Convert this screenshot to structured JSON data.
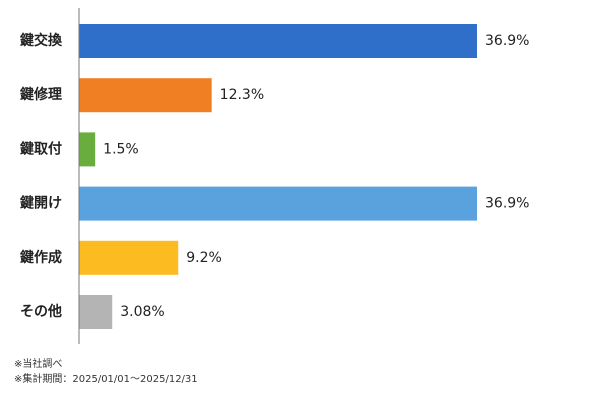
{
  "chart_data": {
    "type": "bar",
    "orientation": "horizontal",
    "categories": [
      "鍵交換",
      "鍵修理",
      "鍵取付",
      "鍵開け",
      "鍵作成",
      "その他"
    ],
    "values": [
      36.9,
      12.3,
      1.5,
      36.9,
      9.2,
      3.08
    ],
    "value_labels": [
      "36.9%",
      "12.3%",
      "1.5%",
      "36.9%",
      "9.2%",
      "3.08%"
    ],
    "colors": [
      "#2f6fca",
      "#f07f23",
      "#6aad3f",
      "#5aa2dd",
      "#fdbb22",
      "#b4b4b4"
    ],
    "xlim": [
      0,
      36.9
    ],
    "grid": false,
    "legend": "none",
    "title": "",
    "xlabel": "",
    "ylabel": ""
  },
  "notes": {
    "source": "※当社調べ",
    "period": "※集計期間：2025/01/01～2025/12/31"
  }
}
